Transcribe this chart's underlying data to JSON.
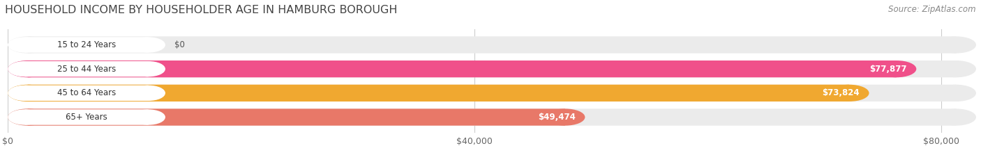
{
  "title": "HOUSEHOLD INCOME BY HOUSEHOLDER AGE IN HAMBURG BOROUGH",
  "source": "Source: ZipAtlas.com",
  "categories": [
    "15 to 24 Years",
    "25 to 44 Years",
    "45 to 64 Years",
    "65+ Years"
  ],
  "values": [
    0,
    77877,
    73824,
    49474
  ],
  "bar_colors": [
    "#b0b0e0",
    "#f0508a",
    "#f0a830",
    "#e87868"
  ],
  "bar_bg_color": "#ebebeb",
  "value_labels": [
    "$0",
    "$77,877",
    "$73,824",
    "$49,474"
  ],
  "x_ticks": [
    0,
    40000,
    80000
  ],
  "x_tick_labels": [
    "$0",
    "$40,000",
    "$80,000"
  ],
  "xlim_max": 83000,
  "title_fontsize": 11.5,
  "source_fontsize": 8.5,
  "label_fontsize": 8.5,
  "value_fontsize": 8.5,
  "tick_fontsize": 9
}
